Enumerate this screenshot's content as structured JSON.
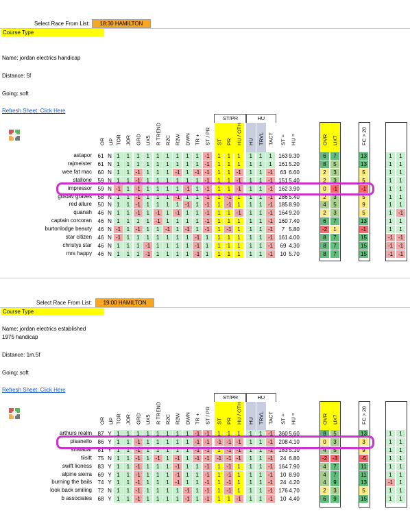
{
  "select_label": "Select Race From List:",
  "course_type": "Course Type",
  "refresh": "Refresh Sheet: Click Here",
  "groups": {
    "stpr": "ST/PR",
    "hu": "HU"
  },
  "columns": [
    "OR",
    "UP",
    "TOR",
    "JOR",
    "GRD",
    "UX5",
    "R TREND",
    "R2C",
    "R2W",
    "DWN",
    "TR +",
    "ST / PR",
    "ST",
    "PR",
    "HU / OTH",
    "HU",
    "TRVL",
    "TACT",
    "ST =",
    "HU =",
    "OVR",
    "UX7",
    "FC > 20"
  ],
  "colors": {
    "race_box": "#f6a623",
    "highlight": "#cc33cc",
    "yellow": "#ffff00",
    "green": "#c6efce",
    "red": "#f2a7a7"
  },
  "races": [
    {
      "race": "18:30 HAMILTON",
      "name": "Name: jordan electrics handicap",
      "name2": "",
      "distance": "Distance: 5f",
      "going": "Going: soft",
      "highlight_row": 4,
      "rows": [
        {
          "n": "astapor",
          "or": "61",
          "up": "N",
          "v": [
            "1",
            "1",
            "1",
            "1",
            "1",
            "1",
            "1",
            "1",
            "1",
            "-1",
            "1",
            "1",
            "1",
            "1",
            "1",
            "1"
          ],
          "trvl": "163",
          "tact": "9.30",
          "st": "6",
          "hu": "7",
          "ovr": "13",
          "ux7": "1",
          "fc": "1"
        },
        {
          "n": "rajmeister",
          "or": "61",
          "up": "N",
          "v": [
            "1",
            "1",
            "1",
            "1",
            "1",
            "1",
            "1",
            "1",
            "1",
            "-1",
            "1",
            "1",
            "1",
            "1",
            "1",
            "1"
          ],
          "trvl": "161",
          "tact": "5.20",
          "st": "8",
          "hu": "5",
          "ovr": "13",
          "ux7": "1",
          "fc": "1"
        },
        {
          "n": "wee fat mac",
          "or": "60",
          "up": "N",
          "v": [
            "1",
            "1",
            "-1",
            "1",
            "1",
            "1",
            "-1",
            "1",
            "-1",
            "-1",
            "1",
            "1",
            "-1",
            "1",
            "1",
            "-1"
          ],
          "trvl": "63",
          "tact": "6.60",
          "st": "2",
          "hu": "3",
          "ovr": "5",
          "ux7": "1",
          "fc": "1"
        },
        {
          "n": "stallone",
          "or": "59",
          "up": "N",
          "v": [
            "1",
            "1",
            "-1",
            "1",
            "1",
            "1",
            "1",
            "1",
            "1",
            "-1",
            "1",
            "1",
            "-1",
            "1",
            "1",
            "-1"
          ],
          "trvl": "151",
          "tact": "5.40",
          "st": "2",
          "hu": "3",
          "ovr": "5",
          "ux7": "1",
          "fc": "1"
        },
        {
          "n": "impressor",
          "or": "59",
          "up": "N",
          "v": [
            "-1",
            "1",
            "-1",
            "1",
            "1",
            "1",
            "1",
            "-1",
            "1",
            "-1",
            "1",
            "1",
            "-1",
            "1",
            "1",
            "-1"
          ],
          "trvl": "162",
          "tact": "3.90",
          "st": "0",
          "hu": "-1",
          "ovr": "-1",
          "ux7": "1",
          "fc": "1"
        },
        {
          "n": "gustav graves",
          "or": "58",
          "up": "N",
          "v": [
            "1",
            "1",
            "-1",
            "1",
            "1",
            "1",
            "-1",
            "1",
            "1",
            "-1",
            "1",
            "-1",
            "1",
            "1",
            "1",
            "-1"
          ],
          "trvl": "286",
          "tact": "5.40",
          "st": "2",
          "hu": "3",
          "ovr": "5",
          "ux7": "1",
          "fc": "1"
        },
        {
          "n": "red allure",
          "or": "50",
          "up": "N",
          "v": [
            "1",
            "1",
            "-1",
            "1",
            "1",
            "1",
            "1",
            "-1",
            "1",
            "-1",
            "1",
            "-1",
            "1",
            "1",
            "1",
            "-1"
          ],
          "trvl": "185",
          "tact": "8.90",
          "st": "4",
          "hu": "5",
          "ovr": "9",
          "ux7": "1",
          "fc": "1"
        },
        {
          "n": "quanah",
          "or": "46",
          "up": "N",
          "v": [
            "1",
            "1",
            "-1",
            "1",
            "-1",
            "1",
            "-1",
            "1",
            "1",
            "-1",
            "1",
            "1",
            "-1",
            "1",
            "1",
            "-1"
          ],
          "trvl": "164",
          "tact": "9.20",
          "st": "2",
          "hu": "3",
          "ovr": "5",
          "ux7": "1",
          "fc": "-1"
        },
        {
          "n": "captain corcoran",
          "or": "46",
          "up": "N",
          "v": [
            "1",
            "1",
            "1",
            "1",
            "-1",
            "1",
            "1",
            "1",
            "1",
            "-1",
            "1",
            "1",
            "1",
            "1",
            "1",
            "-1"
          ],
          "trvl": "160",
          "tact": "7.40",
          "st": "6",
          "hu": "7",
          "ovr": "13",
          "ux7": "1",
          "fc": "1"
        },
        {
          "n": "burtonlodge beauty",
          "or": "46",
          "up": "N",
          "v": [
            "-1",
            "1",
            "-1",
            "1",
            "1",
            "-1",
            "1",
            "-1",
            "1",
            "-1",
            "1",
            "-1",
            "1",
            "1",
            "1",
            "-1"
          ],
          "trvl": "7",
          "tact": "5.80",
          "st": "-2",
          "hu": "1",
          "ovr": "-1",
          "ux7": "1",
          "fc": "1"
        },
        {
          "n": "star citizen",
          "or": "46",
          "up": "N",
          "v": [
            "-1",
            "1",
            "1",
            "1",
            "1",
            "1",
            "1",
            "1",
            "-1",
            "1",
            "1",
            "1",
            "1",
            "1",
            "1",
            "-1"
          ],
          "trvl": "161",
          "tact": "4.00",
          "st": "8",
          "hu": "7",
          "ovr": "15",
          "ux7": "-1",
          "fc": "-1"
        },
        {
          "n": "christys star",
          "or": "46",
          "up": "N",
          "v": [
            "1",
            "1",
            "1",
            "-1",
            "1",
            "1",
            "1",
            "1",
            "-1",
            "1",
            "1",
            "1",
            "1",
            "1",
            "1",
            "-1"
          ],
          "trvl": "69",
          "tact": "4.30",
          "st": "8",
          "hu": "7",
          "ovr": "15",
          "ux7": "-1",
          "fc": "-1"
        },
        {
          "n": "mrs happy",
          "or": "46",
          "up": "N",
          "v": [
            "1",
            "1",
            "1",
            "-1",
            "1",
            "1",
            "1",
            "1",
            "-1",
            "1",
            "1",
            "1",
            "1",
            "1",
            "1",
            "-1"
          ],
          "trvl": "10",
          "tact": "5.70",
          "st": "8",
          "hu": "7",
          "ovr": "15",
          "ux7": "-1",
          "fc": "-1"
        }
      ]
    },
    {
      "race": "19:00 HAMILTON",
      "name": "Name: jordan electrics established",
      "name2": "1975 handicap",
      "distance": "Distance: 1m.5f",
      "going": "Going: soft",
      "highlight_row": 1,
      "rows": [
        {
          "n": "arthurs realm",
          "or": "87",
          "up": "Y",
          "v": [
            "1",
            "1",
            "1",
            "1",
            "1",
            "1",
            "1",
            "1",
            "-1",
            "-1",
            "1",
            "1",
            "1",
            "1",
            "1",
            "-1"
          ],
          "trvl": "360",
          "tact": "5.60",
          "st": "8",
          "hu": "5",
          "ovr": "13",
          "ux7": "1",
          "fc": "1"
        },
        {
          "n": "pisanello",
          "or": "86",
          "up": "Y",
          "v": [
            "1",
            "1",
            "-1",
            "1",
            "1",
            "1",
            "1",
            "1",
            "-1",
            "-1",
            "-1",
            "-1",
            "-1",
            "1",
            "1",
            "-1"
          ],
          "trvl": "208",
          "tact": "4.10",
          "st": "0",
          "hu": "3",
          "ovr": "3",
          "ux7": "1",
          "fc": "1"
        },
        {
          "n": "shaladar",
          "or": "81",
          "up": "Y",
          "v": [
            "1",
            "1",
            "-1",
            "1",
            "1",
            "1",
            "1",
            "1",
            "-1",
            "-1",
            "1",
            "-1",
            "-1",
            "1",
            "1",
            "-1"
          ],
          "trvl": "183",
          "tact": "5.10",
          "st": "4",
          "hu": "5",
          "ovr": "9",
          "ux7": "1",
          "fc": "1"
        },
        {
          "n": "tiisitt",
          "or": "75",
          "up": "N",
          "v": [
            "1",
            "1",
            "-1",
            "1",
            "-1",
            "1",
            "-1",
            "1",
            "-1",
            "-1",
            "-1",
            "-1",
            "-1",
            "1",
            "1",
            "-1"
          ],
          "trvl": "24",
          "tact": "6.80",
          "st": "-2",
          "hu": "-3",
          "ovr": "-5",
          "ux7": "1",
          "fc": "1"
        },
        {
          "n": "swift lioness",
          "or": "83",
          "up": "Y",
          "v": [
            "1",
            "1",
            "-1",
            "1",
            "1",
            "1",
            "-1",
            "1",
            "1",
            "-1",
            "1",
            "-1",
            "1",
            "1",
            "1",
            "-1"
          ],
          "trvl": "164",
          "tact": "7.90",
          "st": "4",
          "hu": "7",
          "ovr": "11",
          "ux7": "1",
          "fc": "1"
        },
        {
          "n": "alpine sierra",
          "or": "69",
          "up": "Y",
          "v": [
            "1",
            "1",
            "-1",
            "1",
            "1",
            "1",
            "-1",
            "1",
            "1",
            "-1",
            "1",
            "-1",
            "1",
            "1",
            "1",
            "-1"
          ],
          "trvl": "10",
          "tact": "8.90",
          "st": "4",
          "hu": "7",
          "ovr": "11",
          "ux7": "1",
          "fc": "1"
        },
        {
          "n": "burning the bails",
          "or": "74",
          "up": "Y",
          "v": [
            "1",
            "1",
            "-1",
            "1",
            "1",
            "1",
            "-1",
            "1",
            "1",
            "-1",
            "1",
            "-1",
            "1",
            "1",
            "1",
            "-1"
          ],
          "trvl": "24",
          "tact": "4.20",
          "st": "4",
          "hu": "9",
          "ovr": "13",
          "ux7": "-1",
          "fc": "1"
        },
        {
          "n": "look back smiling",
          "or": "72",
          "up": "N",
          "v": [
            "1",
            "1",
            "-1",
            "1",
            "1",
            "1",
            "1",
            "-1",
            "1",
            "-1",
            "1",
            "-1",
            "1",
            "1",
            "1",
            "-1"
          ],
          "trvl": "176",
          "tact": "4.70",
          "st": "2",
          "hu": "3",
          "ovr": "5",
          "ux7": "1",
          "fc": "1"
        },
        {
          "n": "b associates",
          "or": "68",
          "up": "Y",
          "v": [
            "1",
            "1",
            "-1",
            "1",
            "1",
            "1",
            "1",
            "-1",
            "1",
            "-1",
            "1",
            "1",
            "-1",
            "1",
            "1",
            "-1"
          ],
          "trvl": "10",
          "tact": "4.40",
          "st": "6",
          "hu": "9",
          "ovr": "15",
          "ux7": "1",
          "fc": "1"
        }
      ]
    }
  ]
}
